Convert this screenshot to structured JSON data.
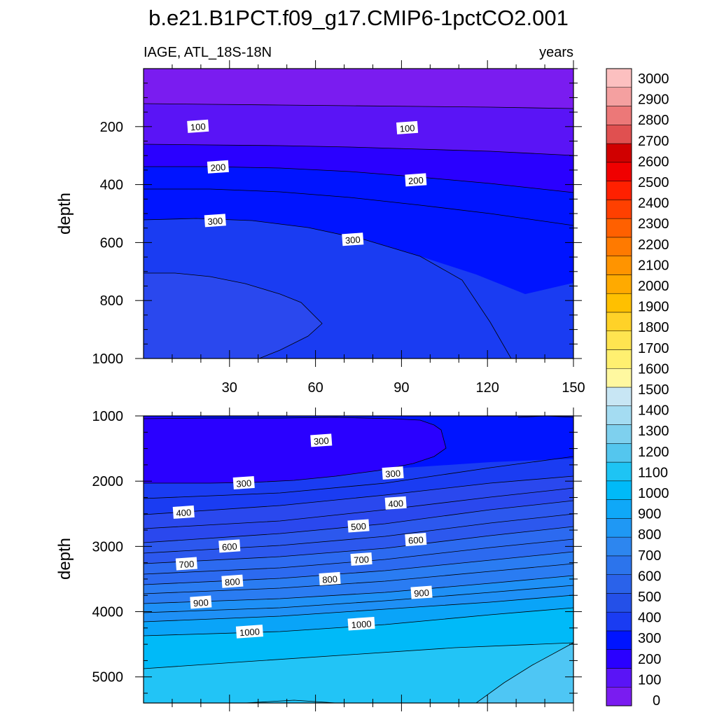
{
  "chart_data": {
    "title": "b.e21.B1PCT.f09_g17.CMIP6-1pctCO2.001",
    "left_subtitle": "IAGE, ATL_18S-18N",
    "right_subtitle": "years",
    "type": "contour",
    "panels": [
      {
        "name": "upper",
        "xlabel": "",
        "ylabel": "depth",
        "xlim": [
          0,
          150
        ],
        "ylim": [
          1000,
          0
        ],
        "xticks": [
          "30",
          "60",
          "90",
          "120",
          "150"
        ],
        "yticks": [
          "200",
          "400",
          "600",
          "800",
          "1000"
        ],
        "contour_labels": [
          {
            "text": "100",
            "x": 19,
            "y": 200
          },
          {
            "text": "100",
            "x": 92,
            "y": 205
          },
          {
            "text": "200",
            "x": 26,
            "y": 340
          },
          {
            "text": "200",
            "x": 95,
            "y": 385
          },
          {
            "text": "300",
            "x": 25,
            "y": 525
          },
          {
            "text": "300",
            "x": 73,
            "y": 590
          }
        ]
      },
      {
        "name": "lower",
        "xlabel": "",
        "ylabel": "depth",
        "xlim": [
          0,
          150
        ],
        "ylim": [
          5400,
          1000
        ],
        "xticks": [
          "",
          "",
          "",
          "",
          ""
        ],
        "yticks": [
          "1000",
          "2000",
          "3000",
          "4000",
          "5000"
        ],
        "contour_labels": [
          {
            "text": "300",
            "x": 62,
            "y": 1380
          },
          {
            "text": "300",
            "x": 87,
            "y": 1880
          },
          {
            "text": "300",
            "x": 35,
            "y": 2030
          },
          {
            "text": "400",
            "x": 14,
            "y": 2480
          },
          {
            "text": "400",
            "x": 88,
            "y": 2340
          },
          {
            "text": "500",
            "x": 75,
            "y": 2690
          },
          {
            "text": "600",
            "x": 30,
            "y": 3000
          },
          {
            "text": "600",
            "x": 95,
            "y": 2900
          },
          {
            "text": "700",
            "x": 15,
            "y": 3270
          },
          {
            "text": "700",
            "x": 76,
            "y": 3200
          },
          {
            "text": "800",
            "x": 31,
            "y": 3540
          },
          {
            "text": "800",
            "x": 65,
            "y": 3500
          },
          {
            "text": "900",
            "x": 20,
            "y": 3860
          },
          {
            "text": "900",
            "x": 97,
            "y": 3710
          },
          {
            "text": "1000",
            "x": 37,
            "y": 4310
          },
          {
            "text": "1000",
            "x": 76,
            "y": 4190
          }
        ]
      }
    ],
    "colorbar": {
      "levels": [
        "0",
        "100",
        "200",
        "300",
        "400",
        "500",
        "600",
        "700",
        "800",
        "900",
        "1000",
        "1100",
        "1200",
        "1300",
        "1400",
        "1500",
        "1600",
        "1700",
        "1800",
        "1900",
        "2000",
        "2100",
        "2200",
        "2300",
        "2400",
        "2500",
        "2600",
        "2700",
        "2800",
        "2900",
        "3000"
      ],
      "colors": [
        "#7a1cf0",
        "#5a14f6",
        "#2a00ff",
        "#0014ff",
        "#1a3cf2",
        "#2450e8",
        "#2a62ea",
        "#2c74ec",
        "#2d86ef",
        "#1f98f4",
        "#0fa8f8",
        "#00baf8",
        "#1ec4f4",
        "#54c6ee",
        "#7ed0ee",
        "#a4dcf2",
        "#c8e6f4",
        "#fff8a0",
        "#fff070",
        "#ffe450",
        "#ffd228",
        "#ffc000",
        "#ffaa00",
        "#ff9400",
        "#ff7a00",
        "#ff6000",
        "#ff4000",
        "#ff2000",
        "#f00000",
        "#d00000",
        "#e05050",
        "#ec7878",
        "#f4a0a0",
        "#fcc0c0"
      ]
    },
    "fill_colors": {
      "l0": "#7a1cf0",
      "l100": "#5a14f6",
      "l200": "#2a00ff",
      "l300": "#0014ff",
      "l400": "#1a3cf2",
      "l500": "#2a48ee",
      "l600": "#2c58ee",
      "l700": "#2c6af0",
      "l800": "#2a7cf2",
      "l900": "#1e90f6",
      "l1000": "#0aa4f8",
      "l1100": "#00baf8",
      "l1200": "#22c4f6",
      "l1300": "#4ec6f4"
    }
  }
}
